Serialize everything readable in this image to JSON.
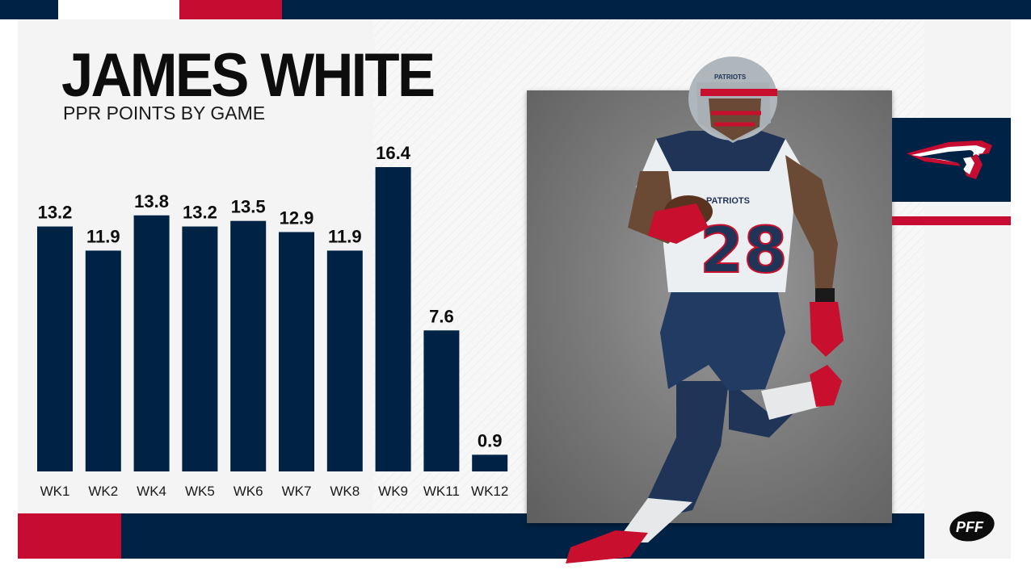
{
  "header": {
    "title": "JAMES WHITE",
    "subtitle": "PPR POINTS BY GAME"
  },
  "colors": {
    "navy": "#002244",
    "red": "#c60c30",
    "silver": "#b0b7bc"
  },
  "chart_data": {
    "type": "bar",
    "title": "JAMES WHITE",
    "subtitle": "PPR POINTS BY GAME",
    "categories": [
      "WK1",
      "WK2",
      "WK4",
      "WK5",
      "WK6",
      "WK7",
      "WK8",
      "WK9",
      "WK11",
      "WK12"
    ],
    "values": [
      13.2,
      11.9,
      13.8,
      13.2,
      13.5,
      12.9,
      11.9,
      16.4,
      7.6,
      0.9
    ],
    "value_labels": [
      "13.2",
      "11.9",
      "13.8",
      "13.2",
      "13.5",
      "12.9",
      "11.9",
      "16.4",
      "7.6",
      "0.9"
    ],
    "xlabel": "",
    "ylabel": "",
    "ylim": [
      0,
      16.4
    ],
    "grid": false,
    "legend": "none",
    "bar_color": "#002244"
  },
  "photo": {
    "jersey_number": "28",
    "helmet_text": "PATRIOTS",
    "chest_text": "PATRIOTS"
  },
  "team_logo": {
    "icon": "patriots-logo-icon"
  },
  "brand": {
    "icon": "pff-logo-icon",
    "text": "PFF"
  }
}
